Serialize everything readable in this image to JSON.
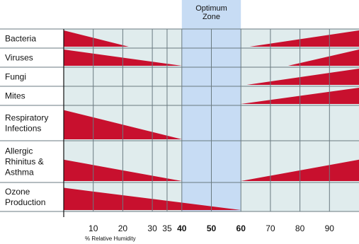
{
  "chart_data": {
    "type": "area",
    "title": "",
    "xlabel": "% Relative Humidity",
    "xlim": [
      0,
      100
    ],
    "x_ticks": [
      {
        "value": 10,
        "label": "10",
        "bold": false
      },
      {
        "value": 20,
        "label": "20",
        "bold": false
      },
      {
        "value": 30,
        "label": "30",
        "bold": false
      },
      {
        "value": 35,
        "label": "35",
        "bold": false
      },
      {
        "value": 40,
        "label": "40",
        "bold": true
      },
      {
        "value": 50,
        "label": "50",
        "bold": true
      },
      {
        "value": 60,
        "label": "60",
        "bold": true
      },
      {
        "value": 70,
        "label": "70",
        "bold": false
      },
      {
        "value": 80,
        "label": "80",
        "bold": false
      },
      {
        "value": 90,
        "label": "90",
        "bold": false
      }
    ],
    "grid_lines": [
      10,
      20,
      30,
      35,
      40,
      50,
      60,
      70,
      80,
      90
    ],
    "optimum_zone": {
      "label_lines": [
        "Optimum",
        "Zone"
      ],
      "from": 40,
      "to": 60
    },
    "colors": {
      "band": "#c8102e",
      "plot_bg": "#e0eced",
      "zone": "#c7dcf4",
      "grid": "#6a7a80",
      "label_bg": "#ffffff"
    },
    "series": [
      {
        "name": "Bacteria",
        "label_lines": [
          "Bacteria"
        ],
        "left": {
          "max": 1.0,
          "end": 22
        },
        "right": {
          "start": 63,
          "max": 1.0
        }
      },
      {
        "name": "Viruses",
        "label_lines": [
          "Viruses"
        ],
        "left": {
          "max": 1.0,
          "end": 40
        },
        "right": {
          "start": 76,
          "max": 1.0
        }
      },
      {
        "name": "Fungi",
        "label_lines": [
          "Fungi"
        ],
        "left": null,
        "right": {
          "start": 62,
          "max": 1.0
        }
      },
      {
        "name": "Mites",
        "label_lines": [
          "Mites"
        ],
        "left": null,
        "right": {
          "start": 60,
          "max": 1.0
        }
      },
      {
        "name": "Respiratory Infections",
        "label_lines": [
          "Respiratory",
          "Infections"
        ],
        "left": {
          "max": 0.9,
          "end": 40
        },
        "right": null
      },
      {
        "name": "Allergic Rhinitus & Asthma",
        "label_lines": [
          "Allergic",
          "Rhinitus &",
          "Asthma"
        ],
        "left": {
          "max": 0.55,
          "end": 40
        },
        "right": {
          "start": 60,
          "max": 0.55
        }
      },
      {
        "name": "Ozone Production",
        "label_lines": [
          "Ozone",
          "Production"
        ],
        "left": {
          "max": 0.85,
          "end": 60
        },
        "right": null
      }
    ]
  }
}
